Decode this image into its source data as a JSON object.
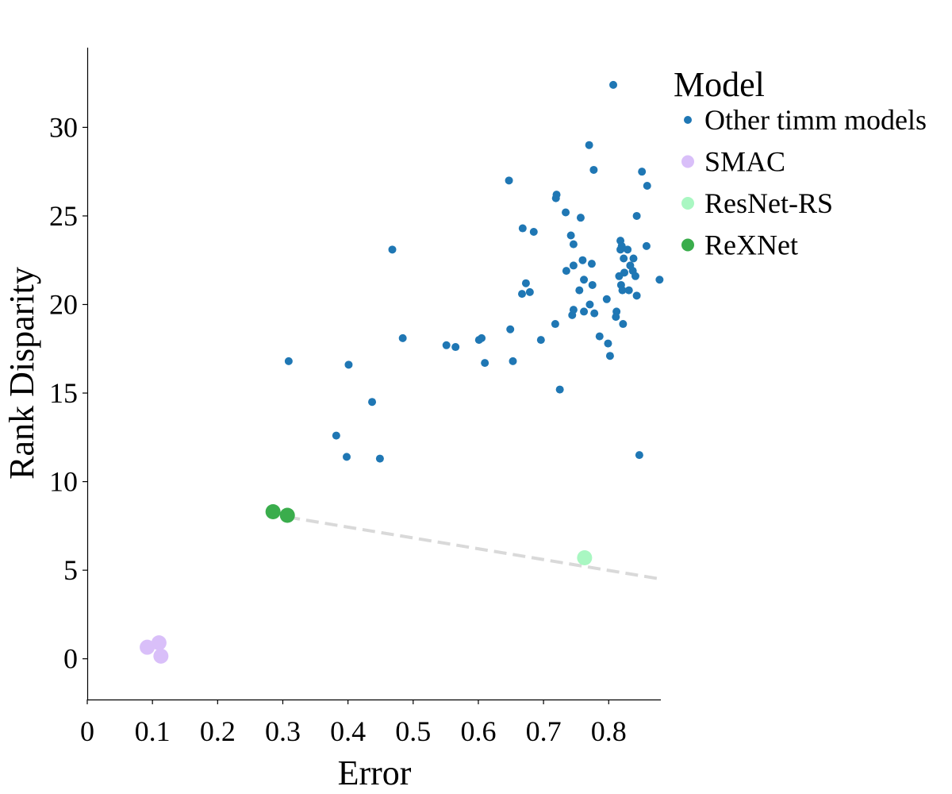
{
  "chart_data": {
    "type": "scatter",
    "title": "",
    "xlabel": "Error",
    "ylabel": "Rank Disparity",
    "xlim": [
      0,
      0.88
    ],
    "ylim": [
      -2.3,
      34.5
    ],
    "xticks": [
      0,
      0.1,
      0.2,
      0.3,
      0.4,
      0.5,
      0.6,
      0.7,
      0.8
    ],
    "xtick_labels": [
      "0",
      "0.1",
      "0.2",
      "0.3",
      "0.4",
      "0.5",
      "0.6",
      "0.7",
      "0.8"
    ],
    "yticks": [
      0,
      5,
      10,
      15,
      20,
      25,
      30
    ],
    "ytick_labels": [
      "0",
      "5",
      "10",
      "15",
      "20",
      "25",
      "30"
    ],
    "grid": false,
    "legend": {
      "title": "Model",
      "placement": "upper-right-outside"
    },
    "series": [
      {
        "name": "Other timm models",
        "color": "#1f77b4",
        "marker": "small-circle",
        "points": [
          [
            0.807,
            32.4
          ],
          [
            0.77,
            29.0
          ],
          [
            0.851,
            27.5
          ],
          [
            0.777,
            27.6
          ],
          [
            0.647,
            27.0
          ],
          [
            0.859,
            26.7
          ],
          [
            0.72,
            26.2
          ],
          [
            0.719,
            26.0
          ],
          [
            0.734,
            25.2
          ],
          [
            0.757,
            24.9
          ],
          [
            0.843,
            25.0
          ],
          [
            0.668,
            24.3
          ],
          [
            0.685,
            24.1
          ],
          [
            0.742,
            23.9
          ],
          [
            0.818,
            23.6
          ],
          [
            0.746,
            23.4
          ],
          [
            0.82,
            23.3
          ],
          [
            0.858,
            23.3
          ],
          [
            0.818,
            23.1
          ],
          [
            0.829,
            23.1
          ],
          [
            0.468,
            23.1
          ],
          [
            0.823,
            22.6
          ],
          [
            0.838,
            22.6
          ],
          [
            0.76,
            22.5
          ],
          [
            0.774,
            22.3
          ],
          [
            0.746,
            22.2
          ],
          [
            0.833,
            22.2
          ],
          [
            0.735,
            21.9
          ],
          [
            0.837,
            21.9
          ],
          [
            0.824,
            21.8
          ],
          [
            0.816,
            21.6
          ],
          [
            0.841,
            21.6
          ],
          [
            0.762,
            21.4
          ],
          [
            0.878,
            21.4
          ],
          [
            0.673,
            21.2
          ],
          [
            0.775,
            21.1
          ],
          [
            0.819,
            21.1
          ],
          [
            0.821,
            20.8
          ],
          [
            0.831,
            20.8
          ],
          [
            0.755,
            20.8
          ],
          [
            0.667,
            20.6
          ],
          [
            0.679,
            20.7
          ],
          [
            0.843,
            20.5
          ],
          [
            0.797,
            20.3
          ],
          [
            0.771,
            20.0
          ],
          [
            0.746,
            19.7
          ],
          [
            0.762,
            19.6
          ],
          [
            0.812,
            19.6
          ],
          [
            0.778,
            19.5
          ],
          [
            0.744,
            19.4
          ],
          [
            0.811,
            19.3
          ],
          [
            0.718,
            18.9
          ],
          [
            0.822,
            18.9
          ],
          [
            0.649,
            18.6
          ],
          [
            0.786,
            18.2
          ],
          [
            0.484,
            18.1
          ],
          [
            0.605,
            18.1
          ],
          [
            0.601,
            18.0
          ],
          [
            0.696,
            18.0
          ],
          [
            0.799,
            17.8
          ],
          [
            0.551,
            17.7
          ],
          [
            0.565,
            17.6
          ],
          [
            0.802,
            17.1
          ],
          [
            0.653,
            16.8
          ],
          [
            0.309,
            16.8
          ],
          [
            0.61,
            16.7
          ],
          [
            0.401,
            16.6
          ],
          [
            0.725,
            15.2
          ],
          [
            0.437,
            14.5
          ],
          [
            0.382,
            12.6
          ],
          [
            0.847,
            11.5
          ],
          [
            0.398,
            11.4
          ],
          [
            0.449,
            11.3
          ]
        ]
      },
      {
        "name": "SMAC",
        "color": "#d9bff9",
        "marker": "large-circle",
        "points": [
          [
            0.092,
            0.65
          ],
          [
            0.11,
            0.9
          ],
          [
            0.113,
            0.15
          ]
        ]
      },
      {
        "name": "ResNet-RS",
        "color": "#a9f7c2",
        "marker": "large-circle",
        "points": [
          [
            0.763,
            5.7
          ]
        ]
      },
      {
        "name": "ReXNet",
        "color": "#3aad4c",
        "marker": "large-circle",
        "points": [
          [
            0.285,
            8.3
          ],
          [
            0.307,
            8.1
          ]
        ]
      }
    ],
    "fit_line": {
      "style": "dashed",
      "color": "#d9d9d9",
      "from": [
        0.307,
        8.0
      ],
      "to": [
        0.88,
        4.5
      ]
    }
  }
}
